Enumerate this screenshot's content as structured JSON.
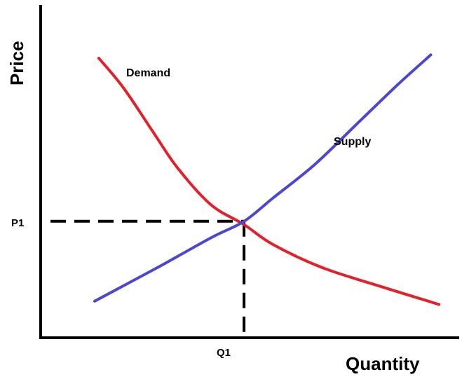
{
  "chart_data": {
    "type": "line",
    "title": "",
    "xlabel": "Quantity",
    "ylabel": "Price",
    "axis_ticks_shown": false,
    "series": [
      {
        "name": "Demand",
        "color": "#e3212b",
        "points": [
          [
            0.14,
            0.84
          ],
          [
            0.2,
            0.75
          ],
          [
            0.27,
            0.62
          ],
          [
            0.33,
            0.51
          ],
          [
            0.41,
            0.4
          ],
          [
            0.49,
            0.34
          ],
          [
            0.56,
            0.28
          ],
          [
            0.68,
            0.21
          ],
          [
            0.83,
            0.15
          ],
          [
            0.96,
            0.1
          ]
        ]
      },
      {
        "name": "Supply",
        "color": "#4b47d3",
        "points": [
          [
            0.13,
            0.11
          ],
          [
            0.28,
            0.21
          ],
          [
            0.41,
            0.3
          ],
          [
            0.49,
            0.35
          ],
          [
            0.56,
            0.42
          ],
          [
            0.66,
            0.52
          ],
          [
            0.76,
            0.64
          ],
          [
            0.86,
            0.76
          ],
          [
            0.94,
            0.85
          ]
        ]
      }
    ],
    "equilibrium": {
      "x_label": "Q1",
      "y_label": "P1",
      "x": 0.49,
      "y": 0.35,
      "guide_style": "dashed"
    }
  }
}
